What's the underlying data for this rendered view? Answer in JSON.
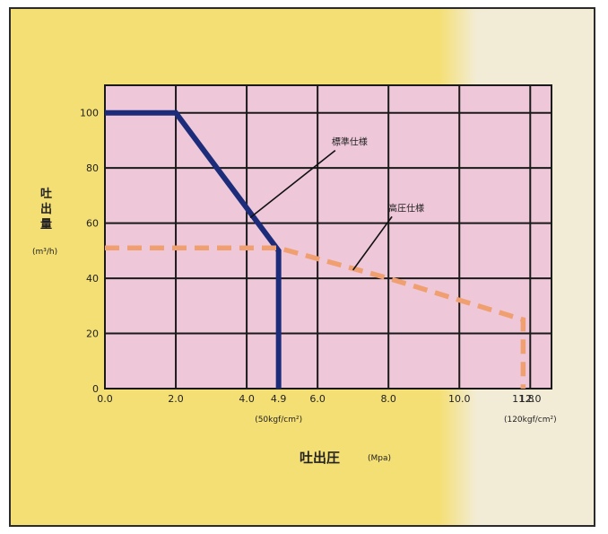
{
  "chart_data": {
    "type": "line",
    "ylabel_lines": [
      "吐",
      "出",
      "量"
    ],
    "yunit": "(m³/h)",
    "xlabel": "吐出圧",
    "xunit": "(Mpa)",
    "xlim": [
      0,
      12.6
    ],
    "ylim": [
      0,
      110
    ],
    "x_ticks": [
      0.0,
      2.0,
      4.0,
      4.9,
      6.0,
      8.0,
      10.0,
      11.8,
      12.0
    ],
    "x_tick_labels": [
      "0.0",
      "2.0",
      "4.0",
      "4.9",
      "6.0",
      "8.0",
      "10.0",
      "11.8",
      "12.0"
    ],
    "x_grid": [
      0,
      2,
      4,
      6,
      8,
      10,
      12
    ],
    "y_ticks": [
      0,
      20,
      40,
      60,
      80,
      100
    ],
    "y_tick_labels": [
      "0",
      "20",
      "40",
      "60",
      "80",
      "100"
    ],
    "y_grid": [
      0,
      20,
      40,
      60,
      80,
      100
    ],
    "x_sublabels": [
      {
        "x": 4.9,
        "text": "(50kgf/cm²)"
      },
      {
        "x": 12.0,
        "text": "(120kgf/cm²)"
      }
    ],
    "grid": true,
    "series": [
      {
        "name": "標準仕様",
        "color": "#1c2c7a",
        "style": "solid",
        "points": [
          [
            0,
            100
          ],
          [
            2.0,
            100
          ],
          [
            4.9,
            50
          ],
          [
            4.9,
            0
          ]
        ]
      },
      {
        "name": "高圧仕様",
        "color": "#f0a070",
        "style": "dashed",
        "points": [
          [
            0,
            51
          ],
          [
            4.9,
            51
          ],
          [
            8.0,
            40
          ],
          [
            11.8,
            25
          ],
          [
            11.8,
            0
          ]
        ]
      }
    ],
    "annotations": [
      {
        "text": "標準仕様",
        "text_at": [
          6.6,
          88
        ],
        "arrow_to": [
          4.1,
          62
        ]
      },
      {
        "text": "高圧仕様",
        "text_at": [
          8.2,
          64
        ],
        "arrow_to": [
          7.0,
          43
        ]
      }
    ]
  },
  "colors": {
    "plot_background": "#eec7d8",
    "grid_line": "#1a1a1a"
  }
}
